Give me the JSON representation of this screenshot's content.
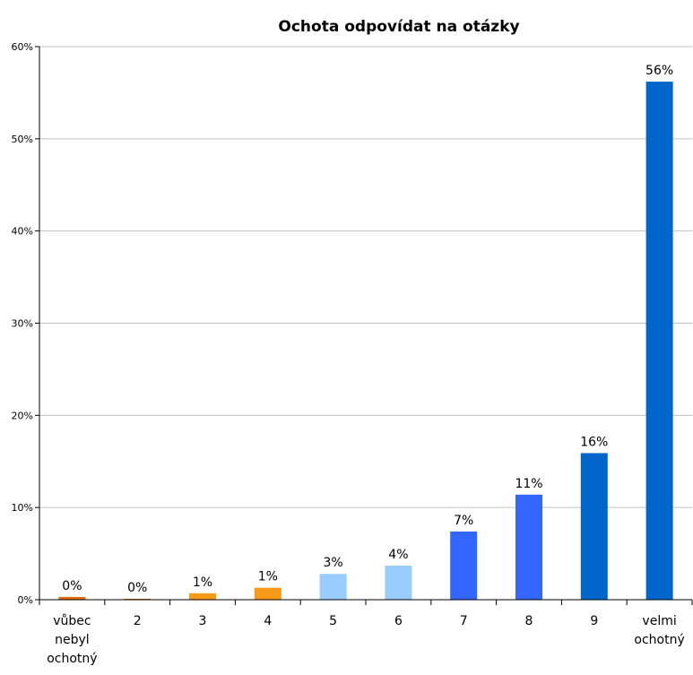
{
  "chart_data": {
    "type": "bar",
    "title": "Ochota odpovídat na otázky",
    "xlabel": "",
    "ylabel": "",
    "ylim": [
      0,
      60
    ],
    "yticks": [
      0,
      10,
      20,
      30,
      40,
      50,
      60
    ],
    "ytick_labels": [
      "0%",
      "10%",
      "20%",
      "30%",
      "40%",
      "50%",
      "60%"
    ],
    "grid": true,
    "legend": "none",
    "categories": [
      [
        "vůbec",
        "nebyl",
        "ochotný"
      ],
      [
        "2"
      ],
      [
        "3"
      ],
      [
        "4"
      ],
      [
        "5"
      ],
      [
        "6"
      ],
      [
        "7"
      ],
      [
        "8"
      ],
      [
        "9"
      ],
      [
        "velmi",
        "ochotný"
      ]
    ],
    "values": [
      0.3,
      0.1,
      0.7,
      1.3,
      2.8,
      3.7,
      7.4,
      11.4,
      15.9,
      56.2
    ],
    "data_labels": [
      "0%",
      "0%",
      "1%",
      "1%",
      "3%",
      "4%",
      "7%",
      "11%",
      "16%",
      "56%"
    ],
    "colors": [
      "#e46c0a",
      "#e46c0a",
      "#f79a18",
      "#f79a18",
      "#99ccff",
      "#99ccff",
      "#3366ff",
      "#3366ff",
      "#0066cc",
      "#0066cc"
    ]
  }
}
